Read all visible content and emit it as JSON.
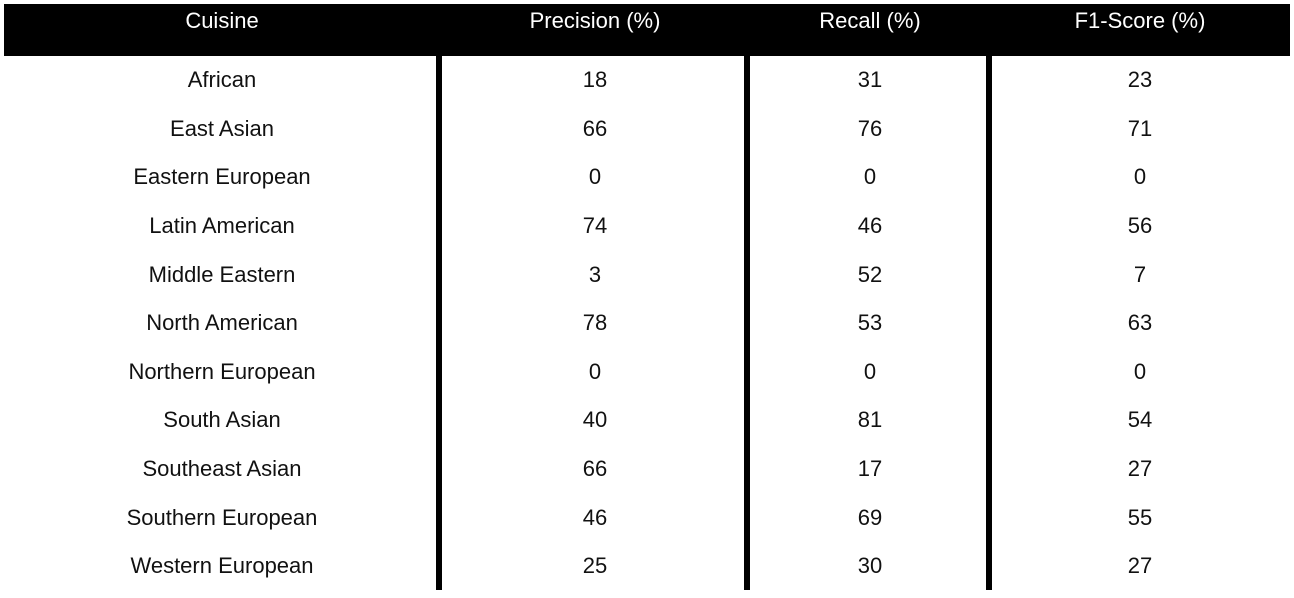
{
  "table": {
    "headers": [
      "Cuisine",
      "Precision (%)",
      "Recall (%)",
      "F1-Score (%)"
    ],
    "rows": [
      [
        "African",
        "18",
        "31",
        "23"
      ],
      [
        "East Asian",
        "66",
        "76",
        "71"
      ],
      [
        "Eastern European",
        "0",
        "0",
        "0"
      ],
      [
        "Latin American",
        "74",
        "46",
        "56"
      ],
      [
        "Middle Eastern",
        "3",
        "52",
        "7"
      ],
      [
        "North American",
        "78",
        "53",
        "63"
      ],
      [
        "Northern European",
        "0",
        "0",
        "0"
      ],
      [
        "South Asian",
        "40",
        "81",
        "54"
      ],
      [
        "Southeast Asian",
        "66",
        "17",
        "27"
      ],
      [
        "Southern European",
        "46",
        "69",
        "55"
      ],
      [
        "Western European",
        "25",
        "30",
        "27"
      ]
    ]
  }
}
